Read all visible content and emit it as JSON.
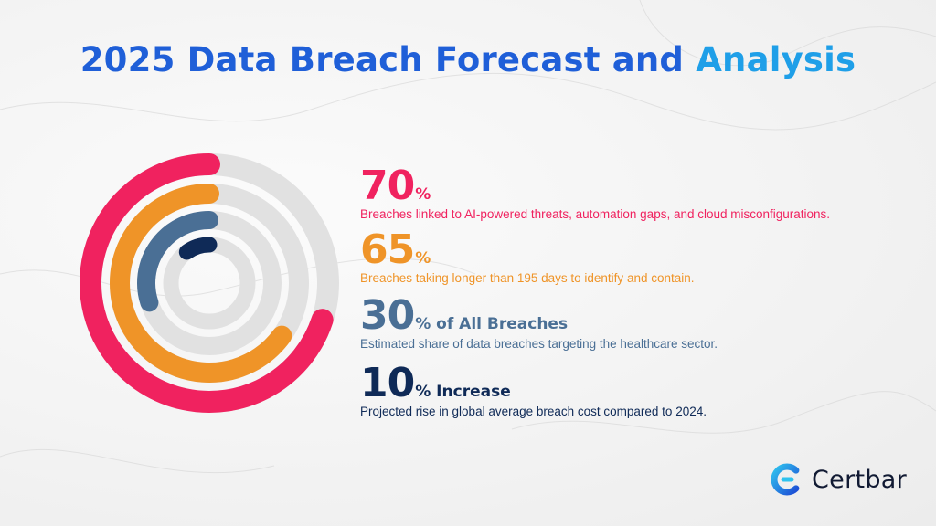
{
  "title": {
    "main": "2025 Data Breach Forecast and ",
    "accent": "Analysis"
  },
  "colors": {
    "title_main": "#1f5fd8",
    "title_accent": "#1f9fe8",
    "track": "#e1e1e1",
    "pink": "#f0225f",
    "orange": "#ef9428",
    "steel": "#4a6f95",
    "navy": "#0f2a57",
    "logo_dark": "#111a33"
  },
  "chart_data": {
    "type": "radial-bar",
    "max": 100,
    "series": [
      {
        "value": 70,
        "color": "#f0225f"
      },
      {
        "value": 65,
        "color": "#ef9428"
      },
      {
        "value": 30,
        "color": "#4a6f95"
      },
      {
        "value": 10,
        "color": "#0f2a57"
      }
    ]
  },
  "stats": [
    {
      "value": "70",
      "suffix": "%",
      "description": "Breaches linked to AI-powered threats, automation gaps, and cloud misconfigurations.",
      "color": "#f0225f"
    },
    {
      "value": "65",
      "suffix": "%",
      "description": "Breaches taking longer than 195 days to identify and contain.",
      "color": "#ef9428"
    },
    {
      "value": "30",
      "suffix": "% of All Breaches",
      "description": "Estimated share of data breaches targeting the healthcare sector.",
      "color": "#4a6f95"
    },
    {
      "value": "10",
      "suffix": "% Increase",
      "description": "Projected rise in global average breach cost compared to 2024.",
      "color": "#0f2a57"
    }
  ],
  "logo": {
    "name": "Certbar",
    "icon": "certbar-c-logo-icon"
  }
}
